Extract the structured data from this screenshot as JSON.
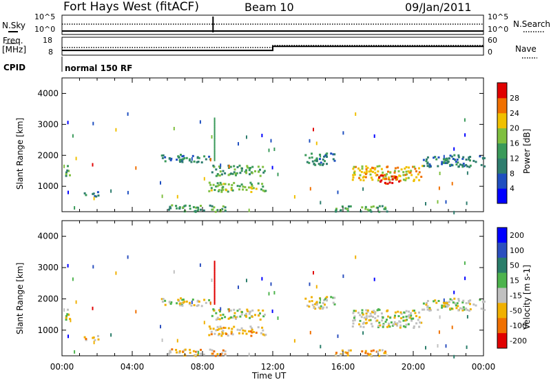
{
  "header": {
    "title": "Fort Hays West (fitACF)",
    "beam": "Beam 10",
    "date": "09/Jan/2011"
  },
  "top_panels": {
    "nsky_label": "N.Sky",
    "nsearch_label": "N.Search",
    "nsky_ticks": [
      "10^5",
      "10^0"
    ],
    "nsearch_ticks": [
      "10^5",
      "10^0"
    ],
    "freq_label": "Freq.",
    "freq_unit": "[MHz]",
    "freq_ticks": [
      "18",
      "8"
    ],
    "nave_label": "Nave",
    "nave_ticks": [
      "60",
      "0"
    ],
    "cpid_label": "CPID",
    "cpid_text": "normal 150 RF",
    "freq_series": {
      "x": [
        0,
        12.0,
        12.0,
        24
      ],
      "y": [
        10.2,
        10.2,
        12.9,
        12.9
      ]
    },
    "nave_series": {
      "x": [
        0,
        12.0,
        12.0,
        24
      ],
      "y": [
        25,
        25,
        33,
        33
      ]
    }
  },
  "chart_data": [
    {
      "type": "heatmap",
      "name_panel": "power",
      "xlabel": "",
      "ylabel": "Slant Range [km]",
      "xlim": [
        0,
        24
      ],
      "ylim": [
        180,
        4500
      ],
      "x_ticks": [
        "00:00",
        "04:00",
        "08:00",
        "12:00",
        "16:00",
        "20:00",
        "00:00"
      ],
      "y_ticks": [
        1000,
        2000,
        3000,
        4000
      ],
      "colorbar": {
        "label": "Power [dB]",
        "ticks": [
          4,
          8,
          12,
          16,
          20,
          24,
          28
        ],
        "range": [
          0,
          30
        ],
        "colors": [
          "#0000ff",
          "#1f4fc0",
          "#2e7d6e",
          "#3a9a5a",
          "#7fbf3f",
          "#f0c000",
          "#f07000",
          "#e00000"
        ]
      },
      "regions": [
        {
          "t": [
            0.1,
            0.4
          ],
          "r": [
            1300,
            1750
          ],
          "level": 3
        },
        {
          "t": [
            5.5,
            8.5
          ],
          "r": [
            1800,
            2050
          ],
          "level": 2
        },
        {
          "t": [
            8.5,
            11.5
          ],
          "r": [
            1350,
            1700
          ],
          "level": 3
        },
        {
          "t": [
            8.3,
            11.6
          ],
          "r": [
            850,
            1150
          ],
          "level": 4
        },
        {
          "t": [
            6.0,
            9.5
          ],
          "r": [
            200,
            420
          ],
          "level": 3
        },
        {
          "t": [
            13.8,
            15.5
          ],
          "r": [
            1700,
            2100
          ],
          "level": 2
        },
        {
          "t": [
            16.5,
            20.5
          ],
          "r": [
            1200,
            1700
          ],
          "level": 5
        },
        {
          "t": [
            17.8,
            19.2
          ],
          "r": [
            1100,
            1400
          ],
          "level": 7
        },
        {
          "t": [
            20.5,
            24
          ],
          "r": [
            1650,
            2050
          ],
          "level": 2
        },
        {
          "t": [
            1.2,
            2.2
          ],
          "r": [
            700,
            850
          ],
          "level": 2
        },
        {
          "t": [
            15.5,
            18.5
          ],
          "r": [
            200,
            400
          ],
          "level": 3
        }
      ]
    },
    {
      "type": "heatmap",
      "name_panel": "velocity",
      "xlabel": "Time UT",
      "ylabel": "Slant Range [km]",
      "xlim": [
        0,
        24
      ],
      "ylim": [
        180,
        4500
      ],
      "x_ticks": [
        "00:00",
        "04:00",
        "08:00",
        "12:00",
        "16:00",
        "20:00",
        "00:00"
      ],
      "y_ticks": [
        1000,
        2000,
        3000,
        4000
      ],
      "colorbar": {
        "label": "Velocity [m s-1]",
        "ticks": [
          "200",
          "100",
          "50",
          "15",
          "-15",
          "-50",
          "-100",
          "-200"
        ],
        "colors": [
          "#0000ff",
          "#2b4fbf",
          "#2a7d6a",
          "#4db34d",
          "#c0c0c0",
          "#f0b000",
          "#f07000",
          "#e00000"
        ]
      },
      "regions": [
        {
          "t": [
            0.1,
            0.4
          ],
          "r": [
            1300,
            1750
          ],
          "level": 4
        },
        {
          "t": [
            5.5,
            8.5
          ],
          "r": [
            1800,
            2050
          ],
          "level": 4
        },
        {
          "t": [
            8.5,
            11.5
          ],
          "r": [
            1350,
            1700
          ],
          "level": 4
        },
        {
          "t": [
            8.3,
            11.6
          ],
          "r": [
            850,
            1150
          ],
          "level": 5
        },
        {
          "t": [
            6.0,
            9.5
          ],
          "r": [
            200,
            420
          ],
          "level": 5
        },
        {
          "t": [
            13.8,
            15.5
          ],
          "r": [
            1700,
            2100
          ],
          "level": 4
        },
        {
          "t": [
            16.5,
            20.5
          ],
          "r": [
            1100,
            1700
          ],
          "level": 4
        },
        {
          "t": [
            20.5,
            24
          ],
          "r": [
            1650,
            2050
          ],
          "level": 4
        },
        {
          "t": [
            1.2,
            2.2
          ],
          "r": [
            700,
            850
          ],
          "level": 5
        },
        {
          "t": [
            15.5,
            18.5
          ],
          "r": [
            200,
            400
          ],
          "level": 5
        }
      ]
    }
  ]
}
